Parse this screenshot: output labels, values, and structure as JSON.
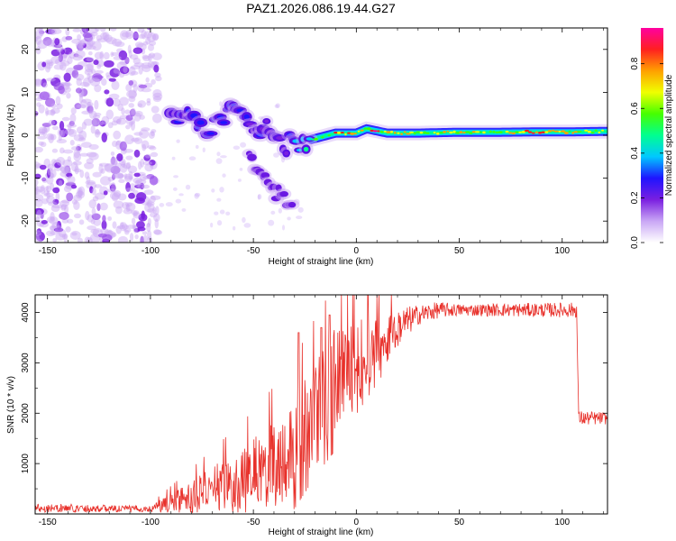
{
  "figure_title": "PAZ1.2026.086.19.44.G27",
  "colorbar": {
    "label": "Normalized spectral amplitude",
    "ticks": [
      "0.0",
      "0.2",
      "0.4",
      "0.6",
      "0.8"
    ],
    "tick_values": [
      0.0,
      0.2,
      0.4,
      0.6,
      0.8
    ],
    "range": [
      0,
      0.96
    ],
    "stops": [
      "#ffffff",
      "#c9a6f5",
      "#7a1fe0",
      "#1f14ff",
      "#00c8ff",
      "#00ff90",
      "#46ff00",
      "#f0ff00",
      "#ffa000",
      "#ff2020",
      "#ff00a0"
    ]
  },
  "chart_data": [
    {
      "type": "heatmap",
      "name": "spectrogram",
      "xlabel": "Height of straight line (km)",
      "ylabel": "Frequency (Hz)",
      "xlim": [
        -156,
        122
      ],
      "ylim": [
        -25,
        25
      ],
      "xticks": [
        -150,
        -100,
        -50,
        0,
        50,
        100
      ],
      "xtick_labels": [
        "-150",
        "-100",
        "-50",
        "0",
        "50",
        "100"
      ],
      "yticks": [
        -20,
        -10,
        0,
        10,
        20
      ],
      "ytick_labels": [
        "-20",
        "-10",
        "0",
        "10",
        "20"
      ],
      "regions": [
        {
          "label": "noise region",
          "x_range": [
            -156,
            -96
          ],
          "f_range": [
            -25,
            25
          ],
          "amplitude": 0.1
        },
        {
          "label": "signal track",
          "x_start": -90,
          "x_end": 122
        },
        {
          "label": "secondary branch",
          "x_start": -52,
          "x_end": -30
        }
      ],
      "signal_track": [
        {
          "x": -90,
          "f": 6.0,
          "a": 0.25
        },
        {
          "x": -80,
          "f": 4.0,
          "a": 0.3
        },
        {
          "x": -70,
          "f": 1.0,
          "a": 0.28
        },
        {
          "x": -60,
          "f": 5.0,
          "a": 0.3
        },
        {
          "x": -50,
          "f": 3.0,
          "a": 0.25
        },
        {
          "x": -40,
          "f": 0.0,
          "a": 0.25
        },
        {
          "x": -30,
          "f": -3.0,
          "a": 0.35
        },
        {
          "x": -22,
          "f": -1.0,
          "a": 0.5
        },
        {
          "x": -10,
          "f": 0.5,
          "a": 0.75
        },
        {
          "x": 0,
          "f": 0.5,
          "a": 0.8
        },
        {
          "x": 5,
          "f": 1.5,
          "a": 0.85
        },
        {
          "x": 15,
          "f": 0.5,
          "a": 0.8
        },
        {
          "x": 30,
          "f": 0.5,
          "a": 0.7
        },
        {
          "x": 50,
          "f": 0.7,
          "a": 0.75
        },
        {
          "x": 70,
          "f": 0.7,
          "a": 0.65
        },
        {
          "x": 92,
          "f": 0.8,
          "a": 0.8
        },
        {
          "x": 105,
          "f": 0.8,
          "a": 0.7
        },
        {
          "x": 122,
          "f": 0.9,
          "a": 0.65
        }
      ],
      "secondary_branch": [
        {
          "x": -52,
          "f": -5.0,
          "a": 0.2
        },
        {
          "x": -45,
          "f": -10.0,
          "a": 0.22
        },
        {
          "x": -38,
          "f": -14.0,
          "a": 0.2
        },
        {
          "x": -30,
          "f": -18.0,
          "a": 0.2
        }
      ]
    },
    {
      "type": "line",
      "name": "snr",
      "color": "#e8302a",
      "xlabel": "Height of straight line (km)",
      "ylabel": "SNR (10 * v/v)",
      "xlim": [
        -156,
        122
      ],
      "ylim": [
        0,
        4350
      ],
      "xticks": [
        -150,
        -100,
        -50,
        0,
        50,
        100
      ],
      "xtick_labels": [
        "-150",
        "-100",
        "-50",
        "0",
        "50",
        "100"
      ],
      "yticks": [
        1000,
        2000,
        3000,
        4000
      ],
      "ytick_labels": [
        "1000",
        "2000",
        "3000",
        "4000"
      ],
      "trend": [
        {
          "x": -156,
          "y": 120
        },
        {
          "x": -100,
          "y": 100
        },
        {
          "x": -85,
          "y": 300
        },
        {
          "x": -70,
          "y": 500
        },
        {
          "x": -55,
          "y": 700
        },
        {
          "x": -40,
          "y": 1000
        },
        {
          "x": -30,
          "y": 1300
        },
        {
          "x": -20,
          "y": 2000
        },
        {
          "x": -10,
          "y": 2600
        },
        {
          "x": 0,
          "y": 3000
        },
        {
          "x": 10,
          "y": 3300
        },
        {
          "x": 20,
          "y": 3700
        },
        {
          "x": 30,
          "y": 3950
        },
        {
          "x": 40,
          "y": 4050
        },
        {
          "x": 107,
          "y": 4050
        },
        {
          "x": 108,
          "y": 1900
        },
        {
          "x": 122,
          "y": 1900
        }
      ],
      "noise_amplitude": [
        {
          "x": -156,
          "a": 90
        },
        {
          "x": -100,
          "a": 60
        },
        {
          "x": -80,
          "a": 300
        },
        {
          "x": -50,
          "a": 700
        },
        {
          "x": -30,
          "a": 1000
        },
        {
          "x": -10,
          "a": 1100
        },
        {
          "x": 10,
          "a": 600
        },
        {
          "x": 30,
          "a": 200
        },
        {
          "x": 50,
          "a": 120
        },
        {
          "x": 107,
          "a": 150
        },
        {
          "x": 122,
          "a": 120
        }
      ],
      "spikes": [
        {
          "x": -28,
          "y": 3600
        },
        {
          "x": -17,
          "y": 3700
        },
        {
          "x": -13,
          "y": 3950
        }
      ]
    }
  ]
}
